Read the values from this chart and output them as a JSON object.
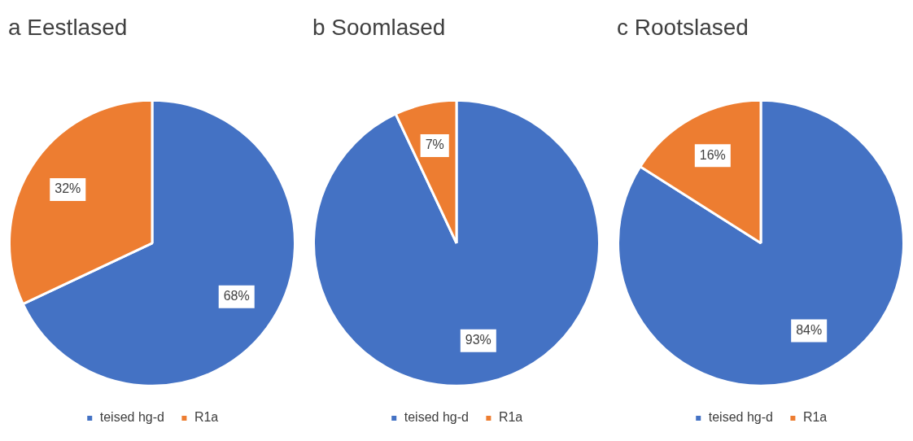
{
  "chart_data": [
    {
      "type": "pie",
      "title": "a Eestlased",
      "categories": [
        "teised hg-d",
        "R1a"
      ],
      "values": [
        68,
        32
      ],
      "colors": [
        "#4472c4",
        "#ed7d31"
      ],
      "value_labels": [
        "68%",
        "32%"
      ],
      "legend": "bottom"
    },
    {
      "type": "pie",
      "title": "b Soomlased",
      "categories": [
        "teised hg-d",
        "R1a"
      ],
      "values": [
        93,
        7
      ],
      "colors": [
        "#4472c4",
        "#ed7d31"
      ],
      "value_labels": [
        "93%",
        "7%"
      ],
      "legend": "bottom"
    },
    {
      "type": "pie",
      "title": "c Rootslased",
      "categories": [
        "teised hg-d",
        "R1a"
      ],
      "values": [
        84,
        16
      ],
      "colors": [
        "#4472c4",
        "#ed7d31"
      ],
      "value_labels": [
        "84%",
        "16%"
      ],
      "legend": "bottom"
    }
  ]
}
